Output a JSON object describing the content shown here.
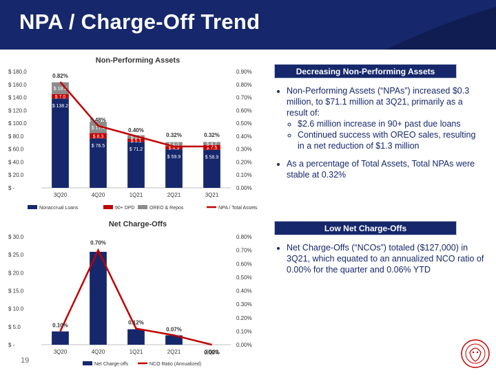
{
  "slide": {
    "title": "NPA / Charge-Off Trend",
    "page_number": "19",
    "colors": {
      "navy": "#16286b",
      "red": "#c00000",
      "gray": "#8c8c8c"
    }
  },
  "panels": {
    "npa": {
      "header": "Decreasing Non-Performing Assets",
      "bullet1": "Non-Performing Assets (“NPAs”) increased $0.3 million, to $71.1 million at 3Q21, primarily as a result of:",
      "sub1": "$2.6 million increase in 90+ past due loans",
      "sub2": "Continued success with OREO sales, resulting in a net reduction of $1.3 million",
      "bullet2": "As a percentage of Total Assets, Total NPAs were stable at 0.32%"
    },
    "nco": {
      "header": "Low Net Charge-Offs",
      "bullet1": "Net Charge-Offs (“NCOs”) totaled ($127,000) in 3Q21, which equated to an annualized NCO ratio of 0.00% for the quarter and 0.06% YTD"
    }
  },
  "chart_data": [
    {
      "type": "bar",
      "stacked": true,
      "title": "Non-Performing Assets",
      "categories": [
        "3Q20",
        "4Q20",
        "1Q21",
        "2Q21",
        "3Q21"
      ],
      "series": [
        {
          "name": "Nonaccrual Loans",
          "color": "#16286b",
          "values": [
            138.2,
            76.5,
            71.2,
            59.9,
            58.9
          ],
          "labels": [
            "$ 138.2",
            "$ 76.5",
            "$ 71.2",
            "$ 59.9",
            "$ 58.9"
          ]
        },
        {
          "name": "90+ DPD",
          "color": "#c00000",
          "values": [
            7.0,
            8.3,
            5.1,
            4.9,
            7.5
          ],
          "labels": [
            "$ 7.0",
            "$ 8.3",
            "$ 5.1",
            "$ 4.9",
            "$ 7.5"
          ]
        },
        {
          "name": "OREO & Repos",
          "color": "#8c8c8c",
          "values": [
            18.2,
            17.4,
            5.2,
            6.0,
            4.7
          ],
          "labels": [
            "$ 18.2",
            "$ 17.4",
            "$ 5.2",
            "$ 6.0",
            "$ 4.7"
          ]
        }
      ],
      "line_series": {
        "name": "NPA / Total Assets",
        "color": "#c00000",
        "values": [
          0.82,
          0.48,
          0.4,
          0.32,
          0.32
        ],
        "labels": [
          "0.82%",
          "0.48%",
          "0.40%",
          "0.32%",
          "0.32%"
        ]
      },
      "ylim": [
        0,
        180
      ],
      "y_ticks": [
        "$ -",
        "$ 20.0",
        "$ 40.0",
        "$ 60.0",
        "$ 80.0",
        "$ 100.0",
        "$ 120.0",
        "$ 140.0",
        "$ 160.0",
        "$ 180.0"
      ],
      "y2lim": [
        0,
        0.9
      ],
      "y2_ticks": [
        "0.00%",
        "0.10%",
        "0.20%",
        "0.30%",
        "0.40%",
        "0.50%",
        "0.60%",
        "0.70%",
        "0.80%",
        "0.90%"
      ],
      "legend_position": "bottom",
      "grid": false
    },
    {
      "type": "bar",
      "title": "Net Charge-Offs",
      "categories": [
        "3Q20",
        "4Q20",
        "1Q21",
        "2Q21",
        "3Q21"
      ],
      "series": [
        {
          "name": "Net Charge-offs",
          "color": "#16286b",
          "values": [
            3.7,
            25.8,
            4.3,
            2.6,
            -0.1
          ]
        }
      ],
      "line_series": {
        "name": "NCO Ratio (Annualized)",
        "color": "#c00000",
        "values": [
          0.1,
          0.7,
          0.12,
          0.07,
          0.0
        ],
        "labels": [
          "0.10%",
          "0.70%",
          "0.12%",
          "0.07%",
          "0.00%"
        ]
      },
      "ylim": [
        0,
        30
      ],
      "y_ticks": [
        "$ -",
        "$ 5.0",
        "$ 10.0",
        "$ 15.0",
        "$ 20.0",
        "$ 25.0",
        "$ 30.0"
      ],
      "y2lim": [
        0,
        0.8
      ],
      "y2_ticks": [
        "0.00%",
        "0.10%",
        "0.20%",
        "0.30%",
        "0.40%",
        "0.50%",
        "0.60%",
        "0.70%",
        "0.80%"
      ],
      "legend_position": "bottom",
      "grid": false
    }
  ]
}
